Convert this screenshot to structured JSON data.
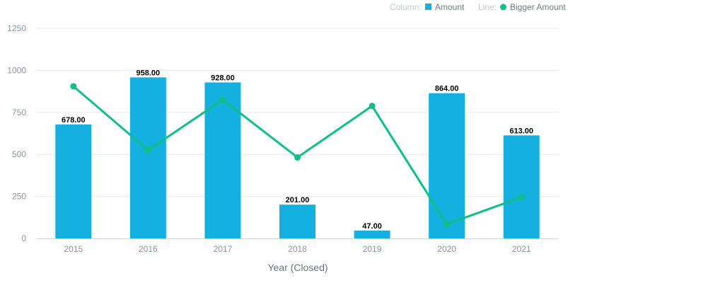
{
  "legend": {
    "column_prefix": "Column:",
    "line_prefix": "Line:"
  },
  "colors": {
    "bar": "#14b1e0",
    "line": "#0fbf86",
    "grid": "#e6e9ee",
    "axis": "#cfd5dc"
  },
  "chart_data": {
    "type": "bar",
    "categories": [
      "2015",
      "2016",
      "2017",
      "2018",
      "2019",
      "2020",
      "2021"
    ],
    "series": [
      {
        "name": "Amount",
        "type": "bar",
        "values": [
          678,
          958,
          928,
          201,
          47,
          864,
          613
        ],
        "labels": [
          "678.00",
          "958.00",
          "928.00",
          "201.00",
          "47.00",
          "864.00",
          "613.00"
        ]
      },
      {
        "name": "Bigger Amount",
        "type": "line",
        "values": [
          905,
          525,
          825,
          482,
          788,
          85,
          245
        ]
      }
    ],
    "xlabel": "Year (Closed)",
    "ylabel": "",
    "ylim": [
      0,
      1250
    ],
    "yticks": [
      "0",
      "250",
      "500",
      "750",
      "1000",
      "1250"
    ],
    "grid": true,
    "legend_position": "top-right"
  }
}
